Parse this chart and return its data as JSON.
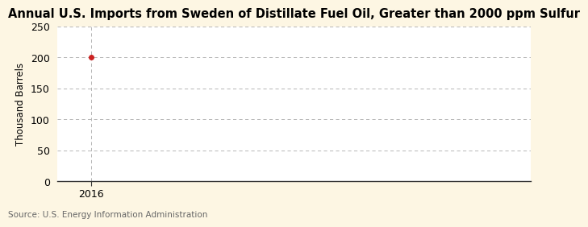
{
  "title": "Annual U.S. Imports from Sweden of Distillate Fuel Oil, Greater than 2000 ppm Sulfur",
  "ylabel": "Thousand Barrels",
  "source": "Source: U.S. Energy Information Administration",
  "x_data": [
    2016
  ],
  "y_data": [
    200
  ],
  "xlim": [
    2015.5,
    2022.5
  ],
  "ylim": [
    0,
    250
  ],
  "yticks": [
    0,
    50,
    100,
    150,
    200,
    250
  ],
  "xticks": [
    2016
  ],
  "point_color": "#cc2222",
  "background_color": "#fdf6e3",
  "plot_bg_color": "#ffffff",
  "grid_color": "#aaaaaa",
  "vline_color": "#aaaaaa",
  "axis_color": "#333333",
  "title_fontsize": 10.5,
  "label_fontsize": 8.5,
  "tick_fontsize": 9,
  "source_fontsize": 7.5,
  "title_fontweight": "bold"
}
